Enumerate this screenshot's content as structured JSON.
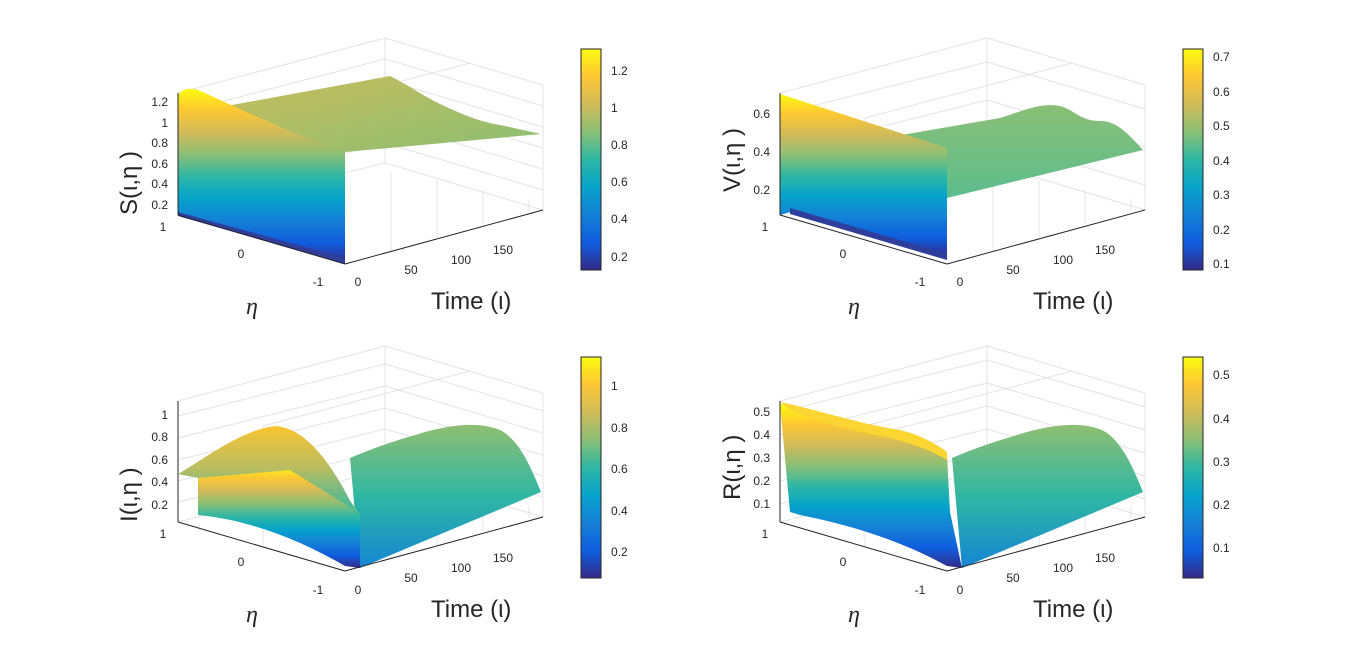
{
  "figure": {
    "panels": [
      {
        "id": "S",
        "zlabel": "S(ι,η )",
        "xlabel": "Time (ι)",
        "ylabel": "η",
        "xticks": [
          "0",
          "50",
          "100",
          "150"
        ],
        "yticks": [
          "1",
          "0",
          "-1"
        ],
        "zticks": [
          "0.2",
          "0.4",
          "0.6",
          "0.8",
          "1",
          "1.2"
        ],
        "colorbar_ticks": [
          "0.2",
          "0.4",
          "0.6",
          "0.8",
          "1",
          "1.2"
        ]
      },
      {
        "id": "V",
        "zlabel": "V(ι,η )",
        "xlabel": "Time (ι)",
        "ylabel": "η",
        "xticks": [
          "0",
          "50",
          "100",
          "150"
        ],
        "yticks": [
          "1",
          "0",
          "-1"
        ],
        "zticks": [
          "0.2",
          "0.4",
          "0.6"
        ],
        "colorbar_ticks": [
          "0.1",
          "0.2",
          "0.3",
          "0.4",
          "0.5",
          "0.6",
          "0.7"
        ]
      },
      {
        "id": "I",
        "zlabel": "I(ι,η )",
        "xlabel": "Time (ι)",
        "ylabel": "η",
        "xticks": [
          "0",
          "50",
          "100",
          "150"
        ],
        "yticks": [
          "1",
          "0",
          "-1"
        ],
        "zticks": [
          "0.2",
          "0.4",
          "0.6",
          "0.8",
          "1"
        ],
        "colorbar_ticks": [
          "0.2",
          "0.4",
          "0.6",
          "0.8",
          "1"
        ]
      },
      {
        "id": "R",
        "zlabel": "R(ι,η )",
        "xlabel": "Time (ι)",
        "ylabel": "η",
        "xticks": [
          "0",
          "50",
          "100",
          "150"
        ],
        "yticks": [
          "1",
          "0",
          "-1"
        ],
        "zticks": [
          "0.1",
          "0.2",
          "0.3",
          "0.4",
          "0.5"
        ],
        "colorbar_ticks": [
          "0.1",
          "0.2",
          "0.3",
          "0.4",
          "0.5"
        ]
      }
    ]
  },
  "chart_data": [
    {
      "type": "surface",
      "x_range": [
        0,
        180
      ],
      "y_range": [
        -1,
        1
      ],
      "z_range": [
        0.1,
        1.3
      ],
      "colormap": "parula",
      "clim": [
        0.13,
        1.32
      ],
      "grid": true,
      "profile": {
        "front_peak_at_eta_1": 1.3,
        "front_height_at_eta_minus_1": 0.1,
        "plateau_after_t0": 0.85,
        "plateau_end_t180": 0.82
      }
    },
    {
      "type": "surface",
      "x_range": [
        0,
        180
      ],
      "y_range": [
        -1,
        1
      ],
      "z_range": [
        0.1,
        0.7
      ],
      "colormap": "parula",
      "clim": [
        0.09,
        0.72
      ],
      "grid": true,
      "profile": {
        "front_peak_at_eta_1": 0.7,
        "front_height_at_eta_minus_1": 0.1,
        "plateau_after_t0": 0.5,
        "plateau_end_t180": 0.48
      }
    },
    {
      "type": "surface",
      "x_range": [
        0,
        180
      ],
      "y_range": [
        -1,
        1
      ],
      "z_range": [
        0.1,
        1.1
      ],
      "colormap": "parula",
      "clim": [
        0.07,
        1.15
      ],
      "grid": true,
      "profile": {
        "front_peak_at_eta_0": 1.0,
        "front_height_at_eta_1": 0.5,
        "front_height_at_eta_minus_1": 0.1,
        "plateau_ridge": 0.8,
        "plateau_edge": 0.35
      }
    },
    {
      "type": "surface",
      "x_range": [
        0,
        180
      ],
      "y_range": [
        -1,
        1
      ],
      "z_range": [
        0.05,
        0.55
      ],
      "colormap": "parula",
      "clim": [
        0.03,
        0.54
      ],
      "grid": true,
      "profile": {
        "front_peak_at_eta_1": 0.5,
        "front_height_at_eta_minus_1": 0.05,
        "plateau_ridge": 0.4,
        "plateau_edge": 0.18
      }
    }
  ]
}
